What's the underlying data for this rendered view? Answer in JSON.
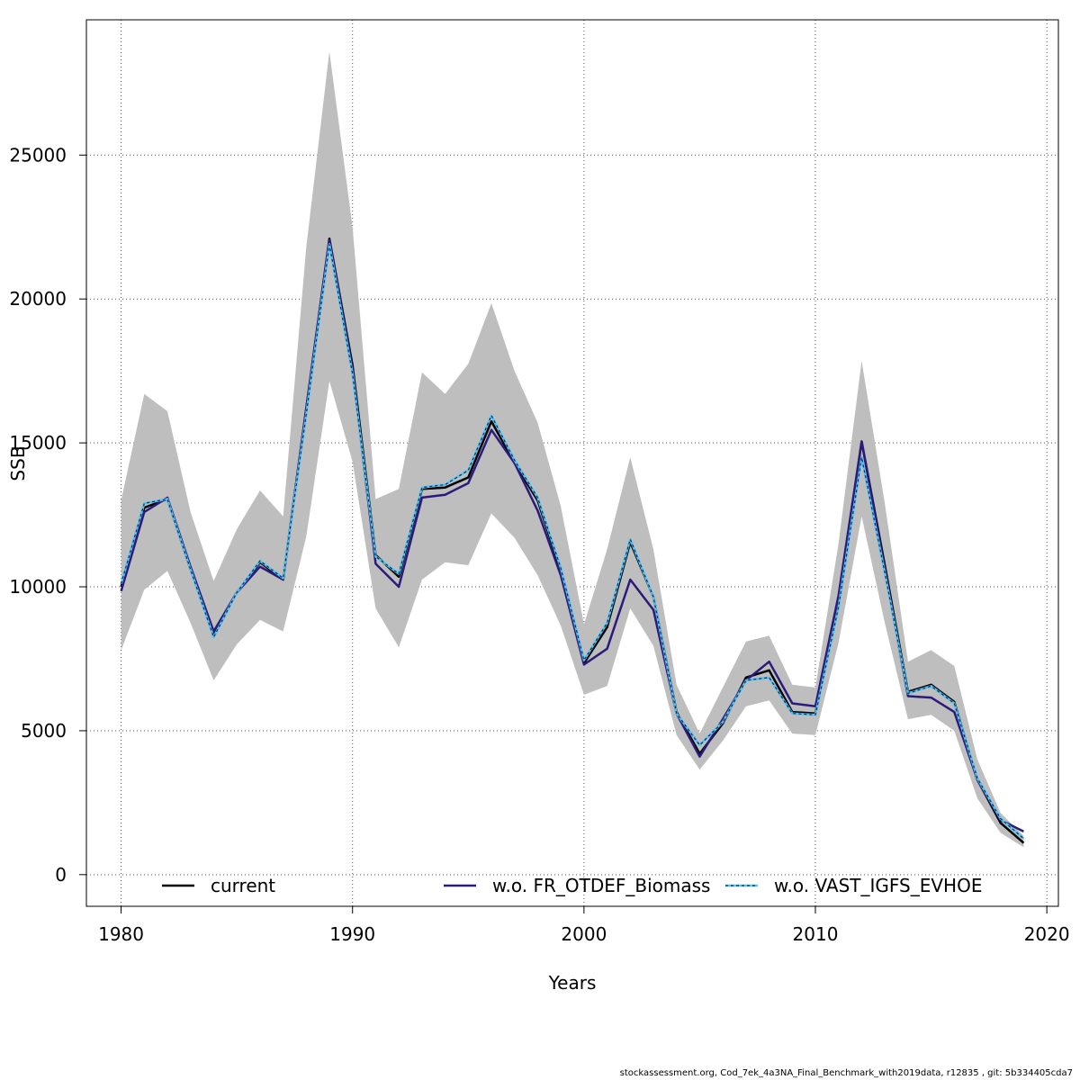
{
  "chart_data": {
    "type": "line",
    "title": "",
    "xlabel": "Years",
    "ylabel": "SSB",
    "xlim": [
      1978.5,
      2020.5
    ],
    "ylim": [
      -1100,
      29700
    ],
    "x_ticks": [
      1980,
      1990,
      2000,
      2010,
      2020
    ],
    "y_ticks": [
      0,
      5000,
      10000,
      15000,
      20000,
      25000
    ],
    "grid": true,
    "legend_position": "bottom",
    "colors": {
      "band": "#bebebe",
      "current": "#000000",
      "fr_otdef": "#2c1a7a",
      "vast_line": "#4fc3f7",
      "vast_dash": "#1b2a4a",
      "grid": "#555555"
    },
    "x": [
      1980,
      1981,
      1982,
      1983,
      1984,
      1985,
      1986,
      1987,
      1988,
      1989,
      1990,
      1991,
      1992,
      1993,
      1994,
      1995,
      1996,
      1997,
      1998,
      1999,
      2000,
      2001,
      2002,
      2003,
      2004,
      2005,
      2006,
      2007,
      2008,
      2009,
      2010,
      2011,
      2012,
      2013,
      2014,
      2015,
      2016,
      2017,
      2018,
      2019
    ],
    "band": {
      "name": "confidence interval (current)",
      "upper": [
        13000,
        16700,
        16100,
        12600,
        10200,
        12000,
        13350,
        12450,
        21800,
        28600,
        22500,
        13050,
        13400,
        17450,
        16700,
        17750,
        19850,
        17500,
        15700,
        12800,
        8700,
        11300,
        14500,
        11300,
        6600,
        4900,
        6500,
        8100,
        8300,
        6600,
        6500,
        11500,
        17850,
        12900,
        7400,
        7800,
        7250,
        4000,
        2150,
        1350
      ],
      "lower": [
        7800,
        9900,
        10550,
        8750,
        6750,
        8000,
        8850,
        8450,
        11750,
        17150,
        14350,
        9250,
        7900,
        10250,
        10850,
        10750,
        12550,
        11700,
        10400,
        8650,
        6250,
        6550,
        9250,
        7950,
        4850,
        3650,
        4650,
        5850,
        6050,
        4900,
        4850,
        8050,
        12450,
        8750,
        5400,
        5550,
        5000,
        2650,
        1450,
        950
      ]
    },
    "series": [
      {
        "name": "current",
        "values": [
          10000,
          12750,
          13050,
          10600,
          8400,
          9800,
          10850,
          10250,
          16200,
          22100,
          17700,
          11100,
          10350,
          13400,
          13450,
          13800,
          15750,
          14300,
          13000,
          10550,
          7350,
          8600,
          11550,
          9650,
          5650,
          4200,
          5250,
          6850,
          7100,
          5650,
          5600,
          9400,
          15050,
          10750,
          6350,
          6600,
          6000,
          3300,
          1800,
          1100
        ]
      },
      {
        "name": "w.o. FR_OTDEF_Biomass",
        "values": [
          9850,
          12600,
          13100,
          10700,
          8450,
          9800,
          10700,
          10250,
          16200,
          22050,
          17550,
          10800,
          10000,
          13100,
          13200,
          13600,
          15450,
          14300,
          12650,
          10400,
          7300,
          7850,
          10250,
          9200,
          5600,
          4100,
          5400,
          6750,
          7400,
          5950,
          5850,
          9700,
          15050,
          10600,
          6200,
          6150,
          5650,
          3300,
          1900,
          1500
        ]
      },
      {
        "name": "w.o. VAST_IGFS_EVHOE",
        "values": [
          10100,
          12900,
          13050,
          10600,
          8250,
          9800,
          10900,
          10300,
          16000,
          21900,
          17400,
          11050,
          10450,
          13450,
          13550,
          14050,
          15950,
          14400,
          13100,
          10650,
          7450,
          8750,
          11650,
          9650,
          5600,
          4500,
          5300,
          6750,
          6850,
          5600,
          5550,
          9300,
          14500,
          10500,
          6300,
          6550,
          5950,
          3350,
          1950,
          1250
        ]
      }
    ],
    "footer": "stockassessment.org, Cod_7ek_4a3NA_Final_Benchmark_with2019data, r12835 , git: 5b334405cda7"
  }
}
